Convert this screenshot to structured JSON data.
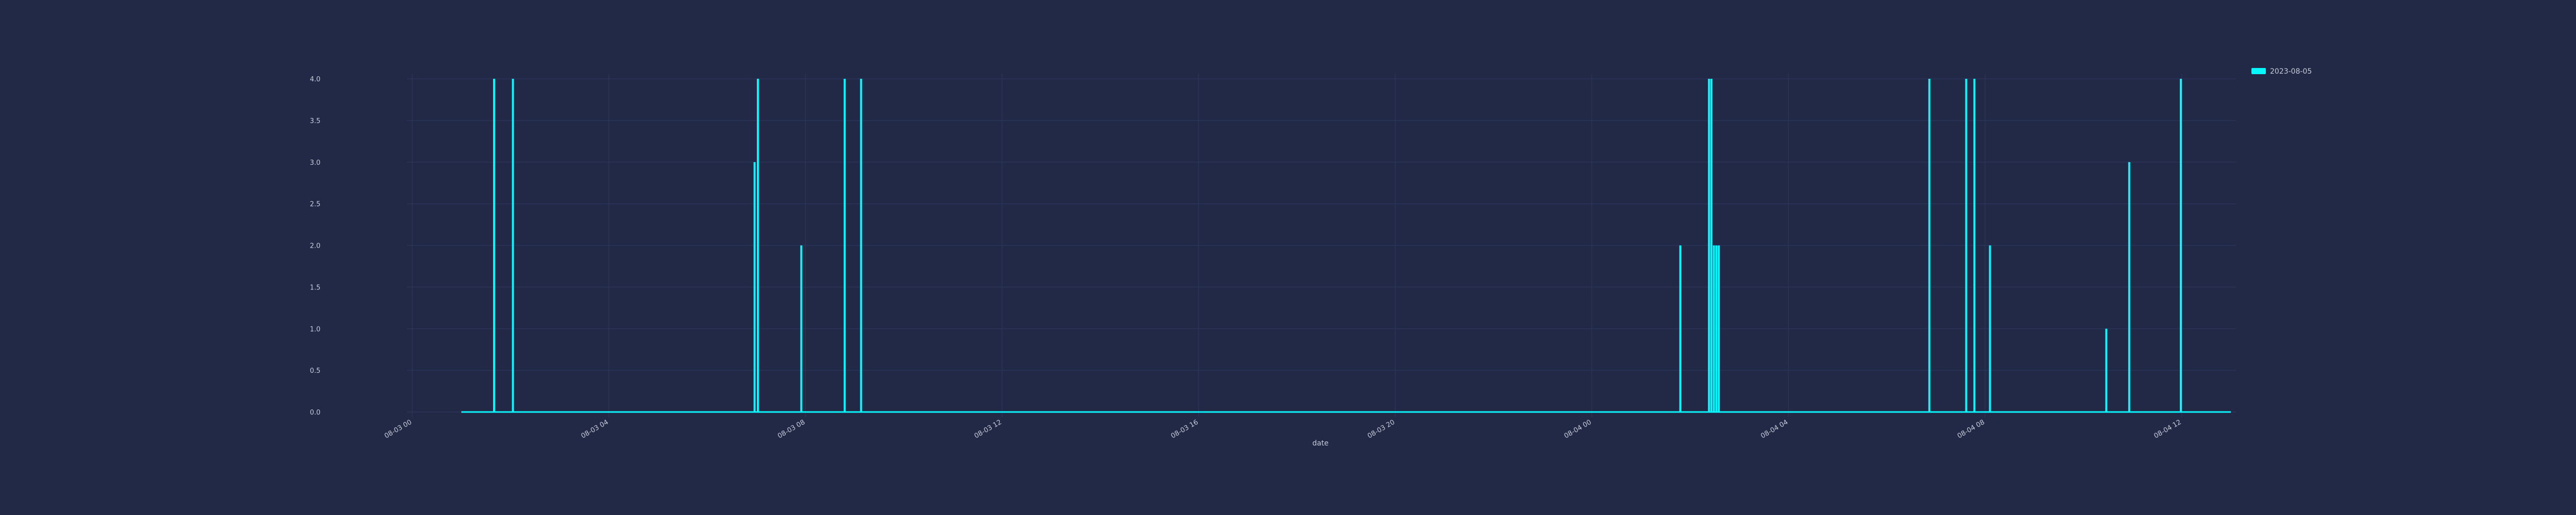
{
  "chart_data": {
    "type": "line",
    "title": "",
    "xlabel": "date",
    "ylabel": "",
    "xlim": [
      "08-03 00:00",
      "08-04 13:00"
    ],
    "ylim": [
      0,
      4
    ],
    "grid": true,
    "legend_position": "top-right",
    "x_ticks": [
      "08-03 00",
      "08-03 04",
      "08-03 08",
      "08-03 12",
      "08-03 16",
      "08-03 20",
      "08-04 00",
      "08-04 04",
      "08-04 08",
      "08-04 12"
    ],
    "y_ticks": [
      "0.0",
      "0.5",
      "1.0",
      "1.5",
      "2.0",
      "2.5",
      "3.0",
      "3.5",
      "4.0"
    ],
    "series": [
      {
        "name": "2023-08-05",
        "color": "#08F7FE",
        "x_range": [
          "08-03 01:00",
          "08-04 13:00"
        ],
        "baseline": 0,
        "spikes": [
          {
            "time": "08-03 01:40",
            "value": 4
          },
          {
            "time": "08-03 02:03",
            "value": 4
          },
          {
            "time": "08-03 06:58",
            "value": 3
          },
          {
            "time": "08-03 07:02",
            "value": 4
          },
          {
            "time": "08-03 07:55",
            "value": 2
          },
          {
            "time": "08-03 08:48",
            "value": 4
          },
          {
            "time": "08-03 09:08",
            "value": 4
          },
          {
            "time": "08-04 01:48",
            "value": 2
          },
          {
            "time": "08-04 02:23",
            "value": 4
          },
          {
            "time": "08-04 02:26",
            "value": 4
          },
          {
            "time": "08-04 02:29",
            "value": 2
          },
          {
            "time": "08-04 02:32",
            "value": 2
          },
          {
            "time": "08-04 02:35",
            "value": 2
          },
          {
            "time": "08-04 06:52",
            "value": 4
          },
          {
            "time": "08-04 07:37",
            "value": 4
          },
          {
            "time": "08-04 07:47",
            "value": 4
          },
          {
            "time": "08-04 08:06",
            "value": 2
          },
          {
            "time": "08-04 10:28",
            "value": 1
          },
          {
            "time": "08-04 10:56",
            "value": 3
          },
          {
            "time": "08-04 11:59",
            "value": 4
          }
        ]
      }
    ]
  }
}
